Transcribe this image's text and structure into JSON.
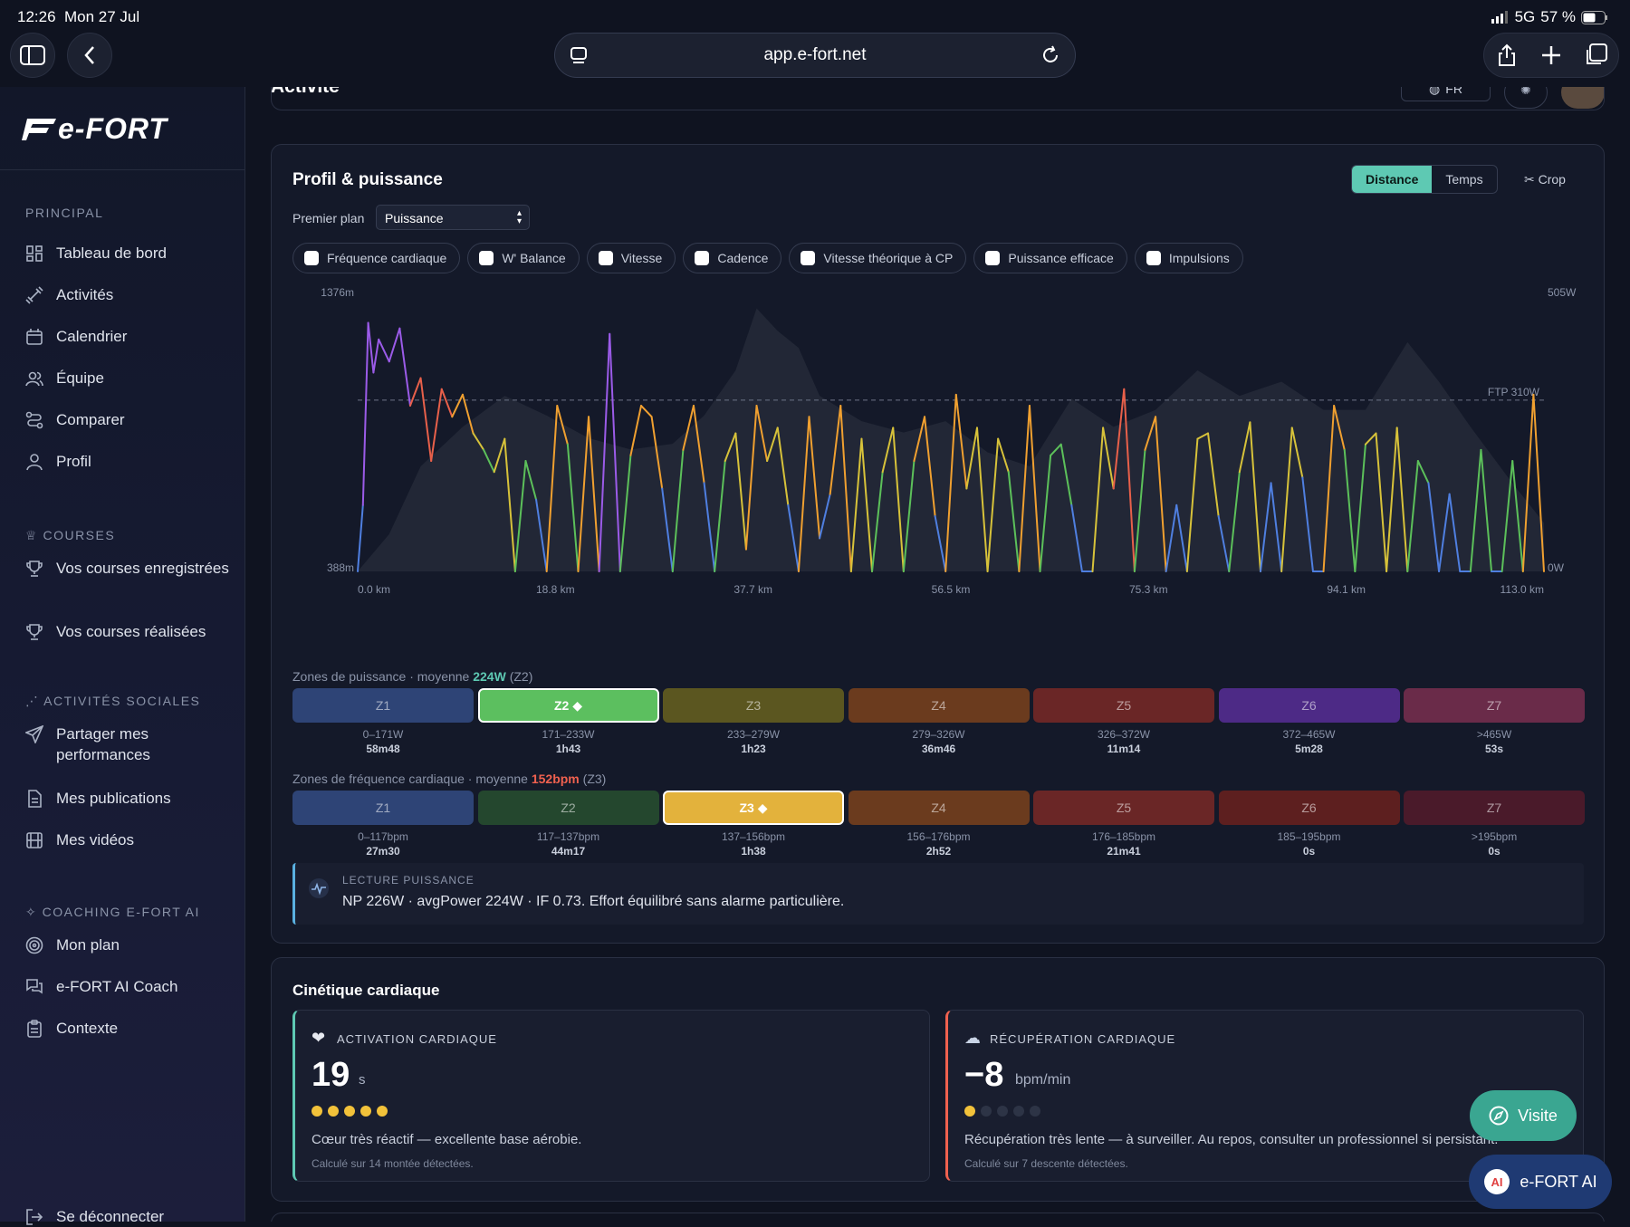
{
  "status": {
    "time": "12:26",
    "date": "Mon 27 Jul",
    "network": "5G",
    "battery": "57 %"
  },
  "browser": {
    "url": "app.e-fort.net"
  },
  "sidebar": {
    "logo": "e-FORT",
    "sections": [
      {
        "title": "PRINCIPAL",
        "items": [
          "Tableau de bord",
          "Activités",
          "Calendrier",
          "Équipe",
          "Comparer",
          "Profil"
        ]
      },
      {
        "title": "COURSES",
        "items": [
          "Vos courses enregistrées",
          "Vos courses réalisées"
        ]
      },
      {
        "title": "ACTIVITÉS SOCIALES",
        "items": [
          "Partager mes performances",
          "Mes publications",
          "Mes vidéos"
        ]
      },
      {
        "title": "COACHING E-FORT AI",
        "items": [
          "Mon plan",
          "e-FORT AI Coach",
          "Contexte"
        ]
      }
    ],
    "logout": "Se déconnecter"
  },
  "header": {
    "title": "Activité",
    "lang": "FR"
  },
  "profile_card": {
    "title": "Profil & puissance",
    "toggle": [
      "Distance",
      "Temps"
    ],
    "toggle_active": "Distance",
    "crop": "Crop",
    "foreground_label": "Premier plan",
    "foreground_value": "Puissance",
    "checkboxes": [
      "Fréquence cardiaque",
      "W' Balance",
      "Vitesse",
      "Cadence",
      "Vitesse théorique à CP",
      "Puissance efficace",
      "Impulsions"
    ]
  },
  "chart_data": {
    "type": "line",
    "x_ticks": [
      "0.0 km",
      "18.8 km",
      "37.7 km",
      "56.5 km",
      "75.3 km",
      "94.1 km",
      "113.0 km"
    ],
    "y_left": {
      "min_label": "388m",
      "max_label": "1376m",
      "range": [
        388,
        1376
      ]
    },
    "y_right": {
      "min_label": "0W",
      "max_label": "505W",
      "range": [
        0,
        505
      ]
    },
    "ftp_label": "FTP 310W",
    "ftp": 310,
    "xlim": [
      0,
      113
    ],
    "elevation": {
      "x": [
        0,
        3,
        6,
        10,
        14,
        18,
        22,
        26,
        30,
        33,
        36,
        38,
        40,
        42,
        44,
        48,
        52,
        56,
        60,
        64,
        68,
        72,
        76,
        80,
        84,
        88,
        92,
        96,
        100,
        103,
        106,
        110,
        113
      ],
      "y": [
        388,
        520,
        760,
        900,
        1010,
        940,
        860,
        820,
        840,
        940,
        1100,
        1320,
        1240,
        1180,
        1010,
        920,
        880,
        920,
        810,
        760,
        1000,
        900,
        960,
        1100,
        1010,
        1060,
        960,
        960,
        1200,
        1060,
        900,
        700,
        560
      ]
    },
    "power": {
      "x": [
        0,
        0.5,
        1,
        1.5,
        2,
        3,
        4,
        5,
        6,
        7,
        8,
        9,
        10,
        11,
        12,
        13,
        14,
        15,
        16,
        17,
        18,
        19,
        20,
        21,
        22,
        23,
        24,
        25,
        26,
        27,
        28,
        29,
        30,
        31,
        32,
        33,
        34,
        35,
        36,
        37,
        38,
        39,
        40,
        41,
        42,
        43,
        44,
        45,
        46,
        47,
        48,
        49,
        50,
        51,
        52,
        53,
        54,
        55,
        56,
        57,
        58,
        59,
        60,
        61,
        62,
        63,
        64,
        65,
        66,
        67,
        68,
        69,
        70,
        71,
        72,
        73,
        74,
        75,
        76,
        77,
        78,
        79,
        80,
        81,
        82,
        83,
        84,
        85,
        86,
        87,
        88,
        89,
        90,
        91,
        92,
        93,
        94,
        95,
        96,
        97,
        98,
        99,
        100,
        101,
        102,
        103,
        104,
        105,
        106,
        107,
        108,
        109,
        110,
        111,
        112,
        113
      ],
      "y": [
        0,
        120,
        450,
        360,
        420,
        380,
        440,
        300,
        350,
        200,
        330,
        280,
        320,
        250,
        220,
        180,
        240,
        0,
        200,
        130,
        0,
        300,
        230,
        0,
        280,
        0,
        430,
        0,
        210,
        300,
        280,
        150,
        0,
        220,
        300,
        160,
        0,
        200,
        250,
        40,
        300,
        200,
        260,
        120,
        0,
        280,
        60,
        140,
        300,
        0,
        240,
        0,
        180,
        260,
        0,
        200,
        280,
        100,
        0,
        320,
        150,
        260,
        0,
        240,
        180,
        0,
        300,
        0,
        210,
        230,
        120,
        0,
        0,
        260,
        150,
        330,
        0,
        220,
        280,
        0,
        120,
        0,
        240,
        250,
        100,
        0,
        180,
        270,
        0,
        160,
        0,
        260,
        170,
        0,
        0,
        300,
        220,
        0,
        230,
        250,
        0,
        260,
        0,
        200,
        160,
        0,
        140,
        0,
        0,
        220,
        0,
        0,
        200,
        0,
        320,
        0
      ]
    }
  },
  "power_zones": {
    "label_prefix": "Zones de puissance · moyenne",
    "avg": "224W",
    "avg_zone": "(Z2)",
    "zones": [
      {
        "name": "Z1",
        "range": "0–171W",
        "time": "58m48",
        "color": "#2e4476"
      },
      {
        "name": "Z2 ◆",
        "range": "171–233W",
        "time": "1h43",
        "color": "#5cbf5f",
        "selected": true
      },
      {
        "name": "Z3",
        "range": "233–279W",
        "time": "1h23",
        "color": "#5b5620"
      },
      {
        "name": "Z4",
        "range": "279–326W",
        "time": "36m46",
        "color": "#6b3b1e"
      },
      {
        "name": "Z5",
        "range": "326–372W",
        "time": "11m14",
        "color": "#6a2626"
      },
      {
        "name": "Z6",
        "range": "372–465W",
        "time": "5m28",
        "color": "#4d2a86"
      },
      {
        "name": "Z7",
        "range": ">465W",
        "time": "53s",
        "color": "#6a2b49"
      }
    ]
  },
  "hr_zones": {
    "label_prefix": "Zones de fréquence cardiaque · moyenne",
    "avg": "152bpm",
    "avg_zone": "(Z3)",
    "zones": [
      {
        "name": "Z1",
        "range": "0–117bpm",
        "time": "27m30",
        "color": "#2e4476"
      },
      {
        "name": "Z2",
        "range": "117–137bpm",
        "time": "44m17",
        "color": "#24472e"
      },
      {
        "name": "Z3 ◆",
        "range": "137–156bpm",
        "time": "1h38",
        "color": "#e3b23c",
        "selected": true
      },
      {
        "name": "Z4",
        "range": "156–176bpm",
        "time": "2h52",
        "color": "#6b3b1e"
      },
      {
        "name": "Z5",
        "range": "176–185bpm",
        "time": "21m41",
        "color": "#6a2626"
      },
      {
        "name": "Z6",
        "range": "185–195bpm",
        "time": "0s",
        "color": "#5d1f1f"
      },
      {
        "name": "Z7",
        "range": ">195bpm",
        "time": "0s",
        "color": "#4a1a2a"
      }
    ]
  },
  "power_reading": {
    "title": "LECTURE PUISSANCE",
    "text": "NP 226W · avgPower 224W · IF 0.73. Effort équilibré sans alarme particulière."
  },
  "kinetics": {
    "title": "Cinétique cardiaque",
    "activation": {
      "title": "ACTIVATION CARDIAQUE",
      "value": "19",
      "unit": "s",
      "dots": 5,
      "desc": "Cœur très réactif — excellente base aérobie.",
      "note": "Calculé sur 14 montée détectées."
    },
    "recovery": {
      "title": "RÉCUPÉRATION CARDIAQUE",
      "value": "−8",
      "unit": "bpm/min",
      "dots": 1,
      "desc": "Récupération très lente — à surveiller. Au repos, consulter un professionnel si persistant.",
      "note": "Calculé sur 7 descente détectées."
    }
  },
  "fab": {
    "visit": "Visite",
    "ai": "e-FORT AI"
  },
  "colors": {
    "accent": "#5ec9b3",
    "power_avg": "#5ec9b3",
    "hr_avg": "#f0614f"
  }
}
